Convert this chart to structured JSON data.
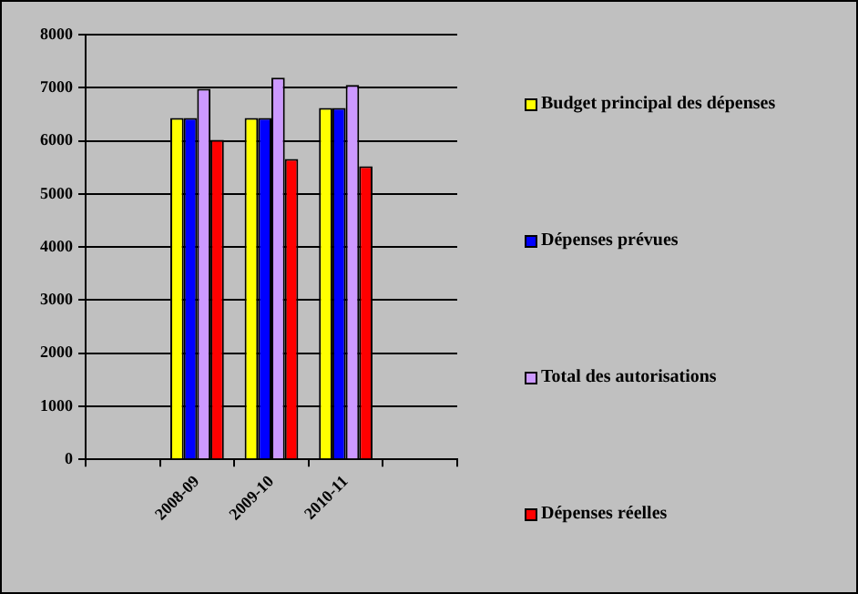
{
  "chart_data": {
    "type": "bar",
    "categories": [
      null,
      "2008-09",
      "2009-10",
      "2010-11",
      null
    ],
    "series": [
      {
        "name": "Budget principal des dépenses",
        "color": "#ffff00",
        "values": [
          null,
          6430,
          6430,
          6620,
          null
        ]
      },
      {
        "name": "Dépenses prévues",
        "color": "#0000ff",
        "values": [
          null,
          6430,
          6430,
          6620,
          null
        ]
      },
      {
        "name": "Total des autorisations",
        "color": "#cc99ff",
        "values": [
          null,
          6980,
          7190,
          7050,
          null
        ]
      },
      {
        "name": "Dépenses réelles",
        "color": "#ff0000",
        "values": [
          null,
          6020,
          5660,
          5520,
          null
        ]
      }
    ],
    "ylim": [
      0,
      8000
    ],
    "yticks": [
      0,
      1000,
      2000,
      3000,
      4000,
      5000,
      6000,
      7000,
      8000
    ],
    "grid": "y",
    "legend": "right"
  }
}
